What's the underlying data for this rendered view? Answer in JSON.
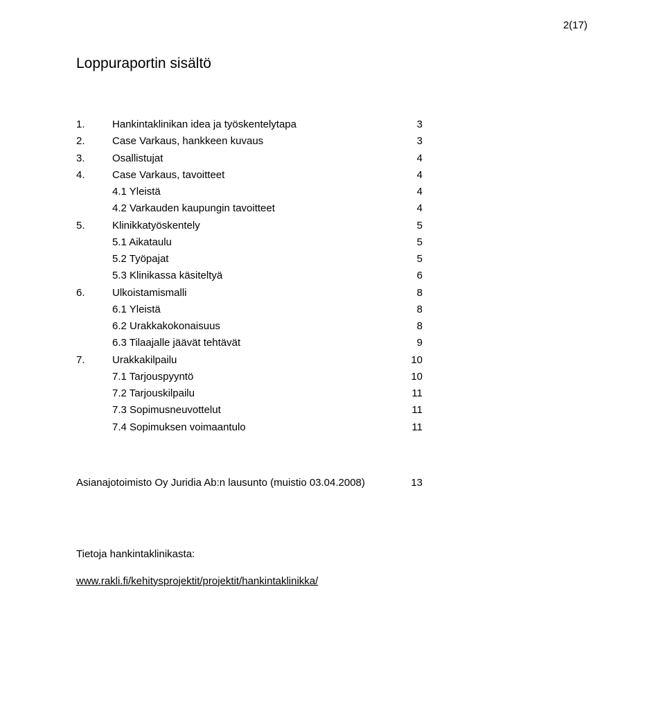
{
  "page_number": "2(17)",
  "title": "Loppuraportin sisältö",
  "toc": [
    {
      "num": "1.",
      "label": "Hankintaklinikan idea ja työskentelytapa",
      "page": "3",
      "sub": false
    },
    {
      "num": "2.",
      "label": "Case Varkaus, hankkeen kuvaus",
      "page": "3",
      "sub": false
    },
    {
      "num": "3.",
      "label": "Osallistujat",
      "page": "4",
      "sub": false
    },
    {
      "num": "4.",
      "label": "Case Varkaus, tavoitteet",
      "page": "4",
      "sub": false
    },
    {
      "num": "",
      "label": "4.1 Yleistä",
      "page": "4",
      "sub": true
    },
    {
      "num": "",
      "label": "4.2 Varkauden kaupungin tavoitteet",
      "page": "4",
      "sub": true
    },
    {
      "num": "5.",
      "label": "Klinikkatyöskentely",
      "page": "5",
      "sub": false
    },
    {
      "num": "",
      "label": "5.1 Aikataulu",
      "page": "5",
      "sub": true
    },
    {
      "num": "",
      "label": "5.2 Työpajat",
      "page": "5",
      "sub": true
    },
    {
      "num": "",
      "label": "5.3 Klinikassa käsiteltyä",
      "page": "6",
      "sub": true
    },
    {
      "num": "6.",
      "label": "Ulkoistamismalli",
      "page": "8",
      "sub": false
    },
    {
      "num": "",
      "label": "6.1 Yleistä",
      "page": "8",
      "sub": true
    },
    {
      "num": "",
      "label": "6.2 Urakkakokonaisuus",
      "page": "8",
      "sub": true
    },
    {
      "num": "",
      "label": "6.3 Tilaajalle jäävät tehtävät",
      "page": "9",
      "sub": true
    },
    {
      "num": "7.",
      "label": "Urakkakilpailu",
      "page": "10",
      "sub": false
    },
    {
      "num": "",
      "label": "7.1 Tarjouspyyntö",
      "page": "10",
      "sub": true
    },
    {
      "num": "",
      "label": "7.2 Tarjouskilpailu",
      "page": "11",
      "sub": true
    },
    {
      "num": "",
      "label": "7.3 Sopimusneuvottelut",
      "page": "11",
      "sub": true
    },
    {
      "num": "",
      "label": "7.4 Sopimuksen voimaantulo",
      "page": "11",
      "sub": true
    }
  ],
  "appendix": {
    "label": "Asianajotoimisto Oy Juridia Ab:n lausunto (muistio 03.04.2008)",
    "page": "13"
  },
  "info": {
    "heading": "Tietoja hankintaklinikasta:",
    "link_text": "www.rakli.fi/kehitysprojektit/projektit/hankintaklinikka/"
  }
}
